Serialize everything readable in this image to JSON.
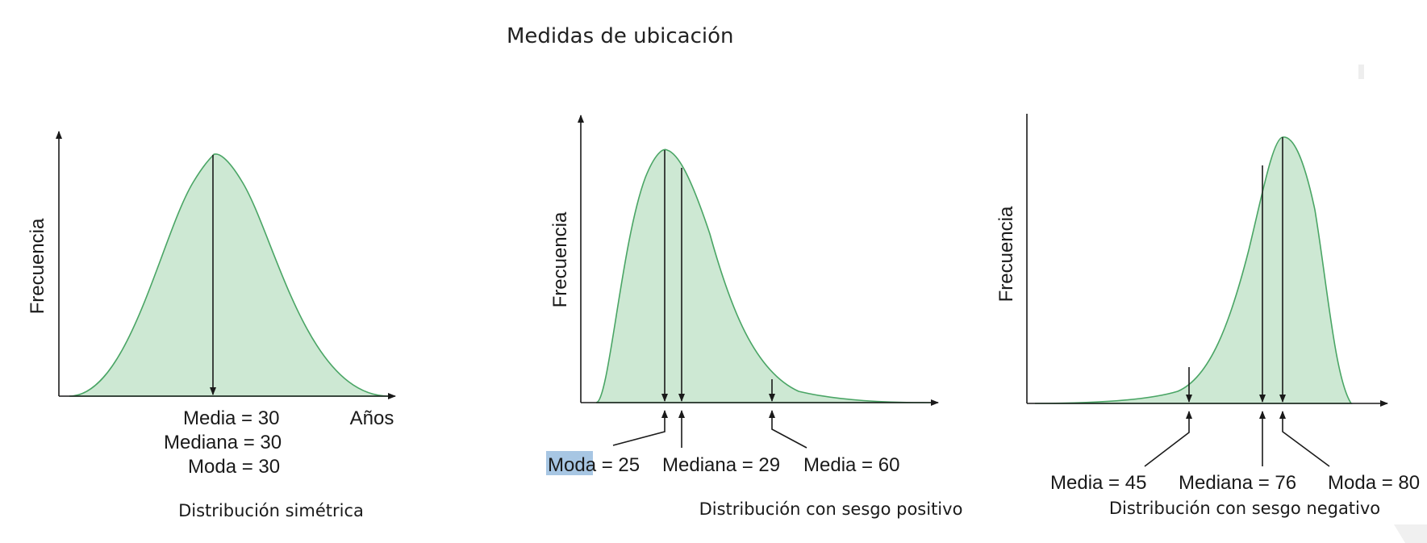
{
  "title": "Medidas de ubicación",
  "colors": {
    "fill": "#cde8d3",
    "stroke": "#4aa565",
    "axis": "#1a1a1a",
    "highlight": "#a7c6e3"
  },
  "panels": [
    {
      "caption": "Distribución simétrica",
      "ylabel": "Frecuencia",
      "xlabel": "Años",
      "measures": [
        {
          "label": "Media = 30"
        },
        {
          "label": "Mediana = 30"
        },
        {
          "label": "Moda = 30"
        }
      ]
    },
    {
      "caption": "Distribución con sesgo positivo",
      "ylabel": "Frecuencia",
      "measures": [
        {
          "name": "Moda",
          "rest": " = 25",
          "highlighted": true
        },
        {
          "label": "Mediana = 29"
        },
        {
          "label": "Media = 60"
        }
      ]
    },
    {
      "caption": "Distribución con sesgo negativo",
      "ylabel": "Frecuencia",
      "measures": [
        {
          "label": "Media = 45"
        },
        {
          "label": "Mediana = 76"
        },
        {
          "label": "Moda = 80"
        }
      ]
    }
  ]
}
